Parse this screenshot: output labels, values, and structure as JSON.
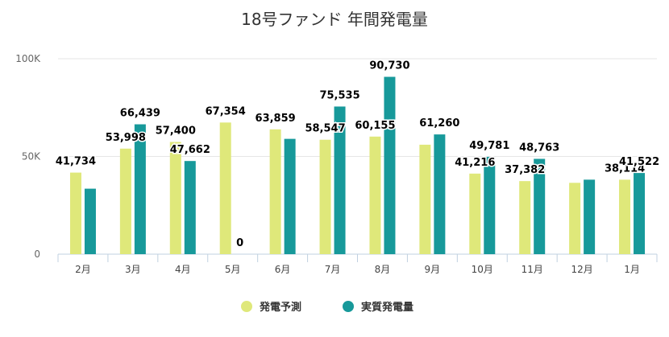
{
  "chart_data": {
    "type": "bar",
    "title": "18号ファンド 年間発電量",
    "categories": [
      "2月",
      "3月",
      "4月",
      "5月",
      "6月",
      "7月",
      "8月",
      "9月",
      "10月",
      "11月",
      "12月",
      "1月"
    ],
    "series": [
      {
        "name": "発電予測",
        "color": "#dfe87a",
        "values": [
          41734,
          53998,
          57400,
          67354,
          63859,
          58547,
          60155,
          56000,
          41216,
          37382,
          36500,
          38114
        ],
        "labels": [
          "41,734",
          "53,998",
          "57,400",
          "67,354",
          "63,859",
          "58,547",
          "60,155",
          "",
          "41,216",
          "37,382",
          "",
          "38,114"
        ]
      },
      {
        "name": "実質発電量",
        "color": "#17999a",
        "values": [
          33500,
          66439,
          47662,
          0,
          59000,
          75535,
          90730,
          61260,
          49781,
          48763,
          38114,
          41522
        ],
        "labels": [
          "",
          "66,439",
          "47,662",
          "0",
          "",
          "75,535",
          "90,730",
          "61,260",
          "49,781",
          "48,763",
          "",
          "41,522"
        ]
      }
    ],
    "yticks": [
      "0",
      "50K",
      "100K"
    ],
    "ylim": [
      0,
      100000
    ],
    "grid": true,
    "legend_position": "bottom-center"
  }
}
